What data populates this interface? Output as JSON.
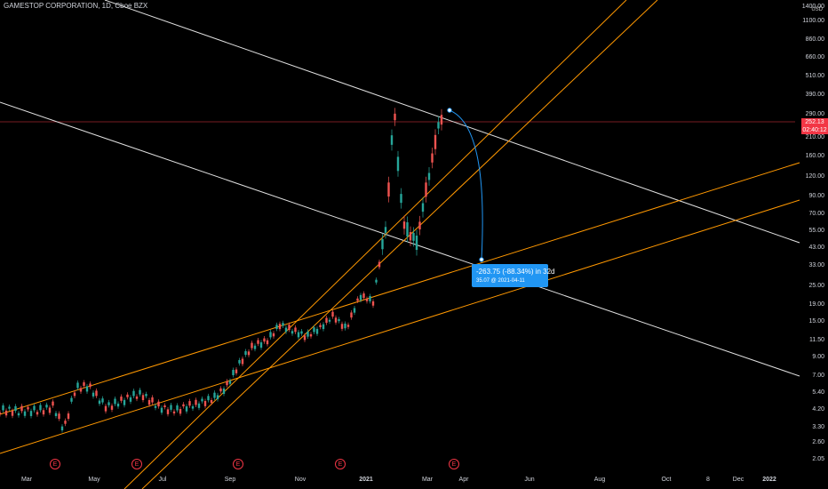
{
  "header": {
    "title": "GAMESTOP CORPORATION, 1D, Cboe BZX",
    "currency": "USD"
  },
  "price_scale": {
    "labels": [
      "1400.00",
      "1100.00",
      "860.00",
      "660.00",
      "510.00",
      "390.00",
      "290.00",
      "210.00",
      "160.00",
      "120.00",
      "90.00",
      "70.00",
      "55.00",
      "43.00",
      "33.00",
      "25.00",
      "19.00",
      "15.00",
      "11.50",
      "9.00",
      "7.00",
      "5.40",
      "4.20",
      "3.30",
      "2.60",
      "2.05"
    ],
    "last_price": "252.13",
    "countdown": "02:40:12"
  },
  "time_axis": {
    "labels": [
      "Mar",
      "May",
      "Jul",
      "Sep",
      "Nov",
      "2021",
      "Mar",
      "Apr",
      "Jun",
      "Aug",
      "Oct",
      "8",
      "Dec",
      "2022"
    ]
  },
  "earnings_markers": [
    "E",
    "E",
    "E",
    "E",
    "E"
  ],
  "measure_tool": {
    "line1": "-263.75 (-88.34%) in 32d",
    "line2": "35.07 @ 2021-04-11"
  },
  "colors": {
    "background": "#000000",
    "candle_up": "#26a69a",
    "candle_down": "#ef5350",
    "trend_white": "#e0e0e0",
    "trend_orange": "#ff9800",
    "price_line": "#f23645",
    "measure": "#2196f3"
  },
  "chart_data": {
    "type": "candlestick",
    "symbol": "GAMESTOP CORPORATION",
    "interval": "1D",
    "exchange": "Cboe BZX",
    "y_scale": "log",
    "approx_closes": [
      {
        "x": "Mar",
        "y": 3.9
      },
      {
        "x": "Apr",
        "y": 5.5
      },
      {
        "x": "May",
        "y": 4.5
      },
      {
        "x": "Jun",
        "y": 4.8
      },
      {
        "x": "Jul",
        "y": 4.4
      },
      {
        "x": "Aug",
        "y": 5.0
      },
      {
        "x": "Sep",
        "y": 8.0
      },
      {
        "x": "Oct",
        "y": 13.5
      },
      {
        "x": "Nov",
        "y": 11.5
      },
      {
        "x": "Dec",
        "y": 16.0
      },
      {
        "x": "2021",
        "y": 19.0
      },
      {
        "x": "Jan late",
        "y": 325
      },
      {
        "x": "Feb",
        "y": 52
      },
      {
        "x": "Mar",
        "y": 260
      }
    ]
  }
}
